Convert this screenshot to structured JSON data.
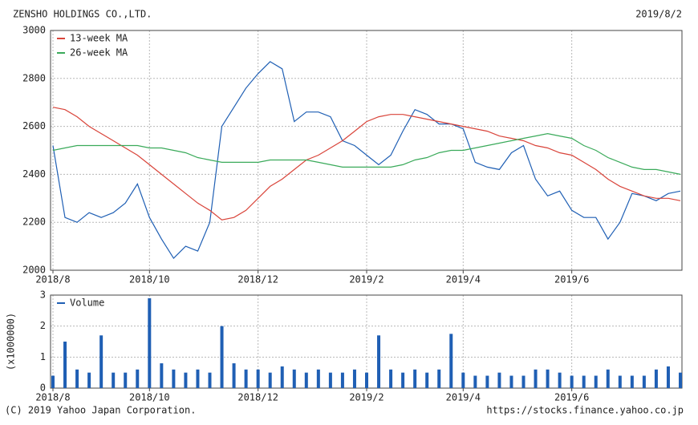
{
  "header": {
    "title": "ZENSHO HOLDINGS CO.,LTD.",
    "date": "2019/8/2"
  },
  "footer": {
    "left": "(C) 2019 Yahoo Japan Corporation.",
    "right": "https://stocks.finance.yahoo.co.jp"
  },
  "chart_data": [
    {
      "type": "line",
      "categories": [
        "2018/8",
        null,
        null,
        null,
        null,
        null,
        null,
        null,
        "2018/10",
        null,
        null,
        null,
        null,
        null,
        null,
        null,
        null,
        "2018/12",
        null,
        null,
        null,
        null,
        null,
        null,
        null,
        null,
        "2019/2",
        null,
        null,
        null,
        null,
        null,
        null,
        null,
        "2019/4",
        null,
        null,
        null,
        null,
        null,
        null,
        null,
        null,
        "2019/6",
        null,
        null,
        null,
        null,
        null,
        null,
        null,
        null,
        null
      ],
      "series": [
        {
          "color": "#1f5fb4",
          "values": [
            2520,
            2220,
            2200,
            2240,
            2220,
            2240,
            2280,
            2360,
            2220,
            2130,
            2050,
            2100,
            2080,
            2200,
            2600,
            2680,
            2760,
            2820,
            2870,
            2840,
            2620,
            2660,
            2660,
            2640,
            2540,
            2520,
            2480,
            2440,
            2480,
            2580,
            2670,
            2650,
            2610,
            2610,
            2590,
            2450,
            2430,
            2420,
            2490,
            2520,
            2380,
            2310,
            2330,
            2250,
            2220,
            2220,
            2130,
            2200,
            2320,
            2310,
            2290,
            2320,
            2330
          ]
        },
        {
          "name": "13-week MA",
          "color": "#d9443a",
          "values": [
            2680,
            2670,
            2640,
            2600,
            2570,
            2540,
            2510,
            2480,
            2440,
            2400,
            2360,
            2320,
            2280,
            2250,
            2210,
            2220,
            2250,
            2300,
            2350,
            2380,
            2420,
            2460,
            2480,
            2510,
            2540,
            2580,
            2620,
            2640,
            2650,
            2650,
            2640,
            2630,
            2620,
            2610,
            2600,
            2590,
            2580,
            2560,
            2550,
            2540,
            2520,
            2510,
            2490,
            2480,
            2450,
            2420,
            2380,
            2350,
            2330,
            2310,
            2300,
            2300,
            2290
          ]
        },
        {
          "name": "26-week MA",
          "color": "#3aaa5a",
          "values": [
            2500,
            2510,
            2520,
            2520,
            2520,
            2520,
            2520,
            2520,
            2510,
            2510,
            2500,
            2490,
            2470,
            2460,
            2450,
            2450,
            2450,
            2450,
            2460,
            2460,
            2460,
            2460,
            2450,
            2440,
            2430,
            2430,
            2430,
            2430,
            2430,
            2440,
            2460,
            2470,
            2490,
            2500,
            2500,
            2510,
            2520,
            2530,
            2540,
            2550,
            2560,
            2570,
            2560,
            2550,
            2520,
            2500,
            2470,
            2450,
            2430,
            2420,
            2420,
            2410,
            2400
          ]
        }
      ],
      "ylim": [
        2000,
        3000
      ],
      "yticks": [
        2000,
        2200,
        2400,
        2600,
        2800,
        3000
      ],
      "grid": true
    },
    {
      "type": "bar",
      "y_label": "(x1000000)",
      "categories": [
        "2018/8",
        null,
        null,
        null,
        null,
        null,
        null,
        null,
        "2018/10",
        null,
        null,
        null,
        null,
        null,
        null,
        null,
        null,
        "2018/12",
        null,
        null,
        null,
        null,
        null,
        null,
        null,
        null,
        "2019/2",
        null,
        null,
        null,
        null,
        null,
        null,
        null,
        "2019/4",
        null,
        null,
        null,
        null,
        null,
        null,
        null,
        null,
        "2019/6",
        null,
        null,
        null,
        null,
        null,
        null,
        null,
        null,
        null
      ],
      "series": [
        {
          "name": "Volume",
          "color": "#1f5fb4",
          "values": [
            0.4,
            1.5,
            0.6,
            0.5,
            1.7,
            0.5,
            0.5,
            0.6,
            2.9,
            0.8,
            0.6,
            0.5,
            0.6,
            0.5,
            2.0,
            0.8,
            0.6,
            0.6,
            0.5,
            0.7,
            0.6,
            0.5,
            0.6,
            0.5,
            0.5,
            0.6,
            0.5,
            1.7,
            0.6,
            0.5,
            0.6,
            0.5,
            0.6,
            1.75,
            0.5,
            0.4,
            0.4,
            0.5,
            0.4,
            0.4,
            0.6,
            0.6,
            0.5,
            0.4,
            0.4,
            0.4,
            0.6,
            0.4,
            0.4,
            0.4,
            0.6,
            0.7,
            0.5
          ]
        }
      ],
      "ylim": [
        0,
        3
      ],
      "yticks": [
        0,
        1,
        2,
        3
      ],
      "grid": true
    }
  ]
}
